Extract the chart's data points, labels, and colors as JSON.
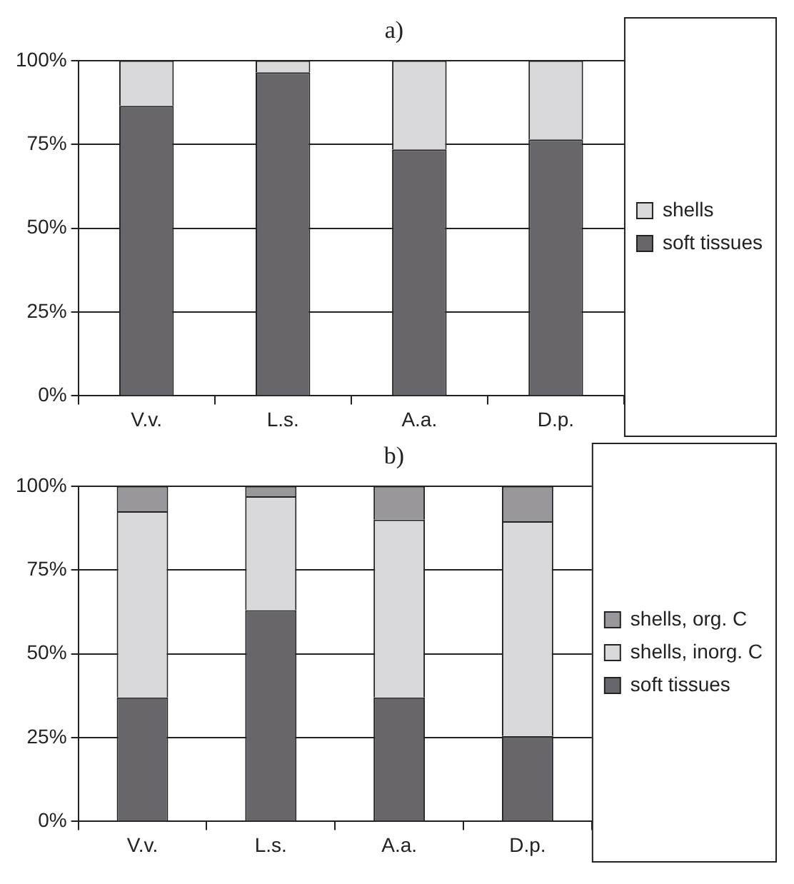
{
  "chart_data": [
    {
      "type": "bar",
      "title": "a)",
      "categories": [
        "V.v.",
        "L.s.",
        "A.a.",
        "D.p."
      ],
      "stacked": true,
      "ylim": [
        0,
        100
      ],
      "yticks": [
        {
          "value": 0,
          "label": "0%"
        },
        {
          "value": 25,
          "label": "25%"
        },
        {
          "value": 50,
          "label": "50%"
        },
        {
          "value": 75,
          "label": "75%"
        },
        {
          "value": 100,
          "label": "100%"
        }
      ],
      "grid": "y",
      "legend": "right",
      "series": [
        {
          "name": "soft tissues",
          "color": "#68666b",
          "values": [
            86.5,
            96.5,
            73.5,
            76.5
          ]
        },
        {
          "name": "shells",
          "color": "#d9d9db",
          "values": [
            13.5,
            3.5,
            26.5,
            23.5
          ]
        }
      ]
    },
    {
      "type": "bar",
      "title": "b)",
      "categories": [
        "V.v.",
        "L.s.",
        "A.a.",
        "D.p."
      ],
      "stacked": true,
      "ylim": [
        0,
        100
      ],
      "yticks": [
        {
          "value": 0,
          "label": "0%"
        },
        {
          "value": 25,
          "label": "25%"
        },
        {
          "value": 50,
          "label": "50%"
        },
        {
          "value": 75,
          "label": "75%"
        },
        {
          "value": 100,
          "label": "100%"
        }
      ],
      "grid": "y",
      "legend": "right",
      "series": [
        {
          "name": "soft tissues",
          "color": "#68666b",
          "values": [
            37,
            63,
            37,
            25.5
          ]
        },
        {
          "name": "shells, inorg. C",
          "color": "#d9d9db",
          "values": [
            55.5,
            34,
            53,
            64
          ]
        },
        {
          "name": "shells, org. C",
          "color": "#99979b",
          "values": [
            7.5,
            3,
            10,
            10.5
          ]
        }
      ]
    }
  ]
}
